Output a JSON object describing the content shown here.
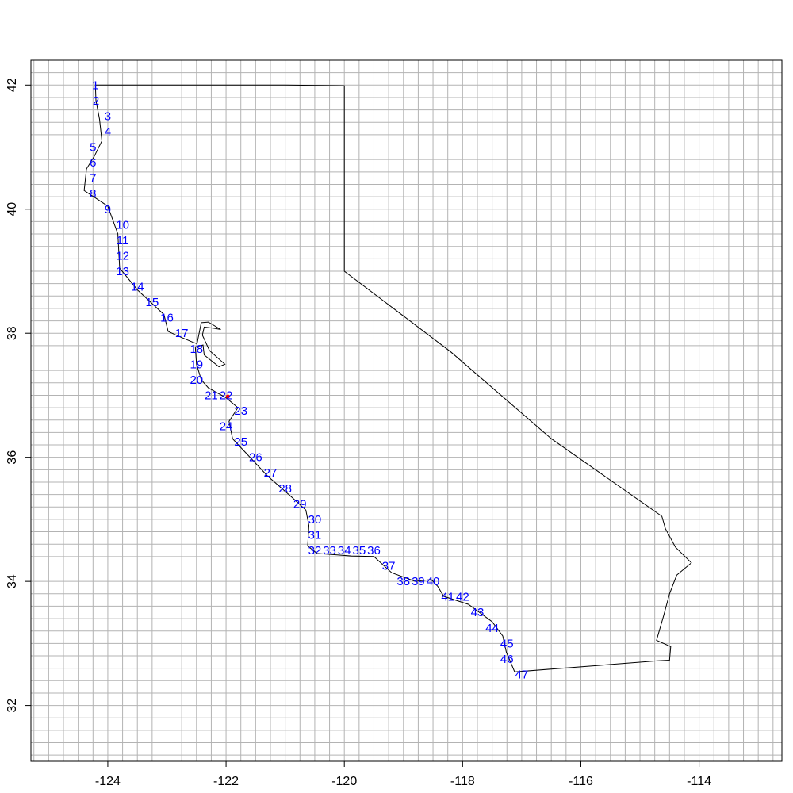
{
  "chart_data": {
    "type": "map",
    "xlim": [
      -125.3,
      -112.6
    ],
    "ylim": [
      31.1,
      42.4
    ],
    "grid": true,
    "grid_step": {
      "x": 0.25,
      "y": 0.2
    },
    "x_ticks": [
      {
        "value": -124,
        "label": "-124"
      },
      {
        "value": -122,
        "label": "-122"
      },
      {
        "value": -120,
        "label": "-120"
      },
      {
        "value": -118,
        "label": "-118"
      },
      {
        "value": -116,
        "label": "-116"
      },
      {
        "value": -114,
        "label": "-114"
      }
    ],
    "y_ticks": [
      {
        "value": 32,
        "label": "32"
      },
      {
        "value": 34,
        "label": "34"
      },
      {
        "value": 36,
        "label": "36"
      },
      {
        "value": 38,
        "label": "38"
      },
      {
        "value": 40,
        "label": "40"
      },
      {
        "value": 42,
        "label": "42"
      }
    ],
    "colors": {
      "grid": "#b3b3b3",
      "outline": "#000000",
      "labels": "#0000ff",
      "marker": "#ff0000"
    },
    "outline": [
      [
        -124.21,
        42.0
      ],
      [
        -122.0,
        42.0
      ],
      [
        -121.0,
        42.0
      ],
      [
        -120.0,
        41.99
      ],
      [
        -120.0,
        39.0
      ],
      [
        -118.2,
        37.7
      ],
      [
        -116.5,
        36.3
      ],
      [
        -114.63,
        35.05
      ],
      [
        -114.57,
        34.85
      ],
      [
        -114.4,
        34.55
      ],
      [
        -114.13,
        34.3
      ],
      [
        -114.38,
        34.1
      ],
      [
        -114.5,
        33.8
      ],
      [
        -114.6,
        33.45
      ],
      [
        -114.72,
        33.05
      ],
      [
        -114.48,
        32.95
      ],
      [
        -114.5,
        32.73
      ],
      [
        -114.7,
        32.72
      ],
      [
        -117.12,
        32.54
      ],
      [
        -117.18,
        32.68
      ],
      [
        -117.26,
        32.86
      ],
      [
        -117.32,
        33.12
      ],
      [
        -117.5,
        33.35
      ],
      [
        -117.9,
        33.63
      ],
      [
        -118.32,
        33.76
      ],
      [
        -118.42,
        33.92
      ],
      [
        -118.53,
        34.03
      ],
      [
        -118.8,
        34.0
      ],
      [
        -119.2,
        34.14
      ],
      [
        -119.5,
        34.4
      ],
      [
        -119.88,
        34.41
      ],
      [
        -120.46,
        34.45
      ],
      [
        -120.62,
        34.57
      ],
      [
        -120.6,
        34.9
      ],
      [
        -120.65,
        35.15
      ],
      [
        -120.88,
        35.35
      ],
      [
        -121.3,
        35.7
      ],
      [
        -121.89,
        36.3
      ],
      [
        -121.95,
        36.58
      ],
      [
        -121.8,
        36.8
      ],
      [
        -122.0,
        36.96
      ],
      [
        -122.3,
        37.12
      ],
      [
        -122.42,
        37.25
      ],
      [
        -122.5,
        37.5
      ],
      [
        -122.52,
        37.78
      ],
      [
        -122.39,
        37.81
      ],
      [
        -122.37,
        37.65
      ],
      [
        -122.12,
        37.46
      ],
      [
        -122.02,
        37.5
      ],
      [
        -122.28,
        37.72
      ],
      [
        -122.4,
        37.97
      ],
      [
        -122.37,
        38.1
      ],
      [
        -122.2,
        38.08
      ],
      [
        -122.09,
        38.06
      ],
      [
        -122.3,
        38.18
      ],
      [
        -122.42,
        38.17
      ],
      [
        -122.47,
        37.93
      ],
      [
        -122.49,
        37.83
      ],
      [
        -122.55,
        37.85
      ],
      [
        -122.8,
        37.95
      ],
      [
        -122.98,
        38.03
      ],
      [
        -123.05,
        38.3
      ],
      [
        -123.5,
        38.7
      ],
      [
        -123.8,
        39.05
      ],
      [
        -123.83,
        39.6
      ],
      [
        -124.0,
        40.05
      ],
      [
        -124.4,
        40.3
      ],
      [
        -124.36,
        40.65
      ],
      [
        -124.23,
        40.85
      ],
      [
        -124.1,
        41.1
      ],
      [
        -124.14,
        41.45
      ],
      [
        -124.2,
        41.75
      ],
      [
        -124.21,
        42.0
      ]
    ],
    "points": [
      {
        "label": "1",
        "lon": -124.21,
        "lat": 42.0
      },
      {
        "label": "2",
        "lon": -124.2,
        "lat": 41.75
      },
      {
        "label": "3",
        "lon": -124.0,
        "lat": 41.5
      },
      {
        "label": "4",
        "lon": -124.0,
        "lat": 41.25
      },
      {
        "label": "5",
        "lon": -124.25,
        "lat": 41.0
      },
      {
        "label": "6",
        "lon": -124.25,
        "lat": 40.75
      },
      {
        "label": "7",
        "lon": -124.25,
        "lat": 40.5
      },
      {
        "label": "8",
        "lon": -124.25,
        "lat": 40.25
      },
      {
        "label": "9",
        "lon": -124.0,
        "lat": 40.0
      },
      {
        "label": "10",
        "lon": -123.75,
        "lat": 39.75
      },
      {
        "label": "11",
        "lon": -123.75,
        "lat": 39.5
      },
      {
        "label": "12",
        "lon": -123.75,
        "lat": 39.25
      },
      {
        "label": "13",
        "lon": -123.75,
        "lat": 39.0
      },
      {
        "label": "14",
        "lon": -123.5,
        "lat": 38.75
      },
      {
        "label": "15",
        "lon": -123.25,
        "lat": 38.5
      },
      {
        "label": "16",
        "lon": -123.0,
        "lat": 38.25
      },
      {
        "label": "17",
        "lon": -122.75,
        "lat": 38.0
      },
      {
        "label": "18",
        "lon": -122.5,
        "lat": 37.75
      },
      {
        "label": "19",
        "lon": -122.5,
        "lat": 37.5
      },
      {
        "label": "20",
        "lon": -122.5,
        "lat": 37.25
      },
      {
        "label": "21",
        "lon": -122.25,
        "lat": 37.0
      },
      {
        "label": "22",
        "lon": -122.0,
        "lat": 37.0
      },
      {
        "label": "23",
        "lon": -121.75,
        "lat": 36.75
      },
      {
        "label": "24",
        "lon": -122.0,
        "lat": 36.5
      },
      {
        "label": "25",
        "lon": -121.75,
        "lat": 36.25
      },
      {
        "label": "26",
        "lon": -121.5,
        "lat": 36.0
      },
      {
        "label": "27",
        "lon": -121.25,
        "lat": 35.75
      },
      {
        "label": "28",
        "lon": -121.0,
        "lat": 35.5
      },
      {
        "label": "29",
        "lon": -120.75,
        "lat": 35.25
      },
      {
        "label": "30",
        "lon": -120.5,
        "lat": 35.0
      },
      {
        "label": "31",
        "lon": -120.5,
        "lat": 34.75
      },
      {
        "label": "32",
        "lon": -120.5,
        "lat": 34.5
      },
      {
        "label": "33",
        "lon": -120.25,
        "lat": 34.5
      },
      {
        "label": "34",
        "lon": -120.0,
        "lat": 34.5
      },
      {
        "label": "35",
        "lon": -119.75,
        "lat": 34.5
      },
      {
        "label": "36",
        "lon": -119.5,
        "lat": 34.5
      },
      {
        "label": "37",
        "lon": -119.25,
        "lat": 34.25
      },
      {
        "label": "38",
        "lon": -119.0,
        "lat": 34.0
      },
      {
        "label": "39",
        "lon": -118.75,
        "lat": 34.0
      },
      {
        "label": "40",
        "lon": -118.5,
        "lat": 34.0
      },
      {
        "label": "41",
        "lon": -118.25,
        "lat": 33.75
      },
      {
        "label": "42",
        "lon": -118.0,
        "lat": 33.75
      },
      {
        "label": "43",
        "lon": -117.75,
        "lat": 33.5
      },
      {
        "label": "44",
        "lon": -117.5,
        "lat": 33.25
      },
      {
        "label": "45",
        "lon": -117.25,
        "lat": 33.0
      },
      {
        "label": "46",
        "lon": -117.25,
        "lat": 32.75
      },
      {
        "label": "47",
        "lon": -117.0,
        "lat": 32.5
      }
    ],
    "highlight": {
      "lon": -121.97,
      "lat": 36.98
    }
  }
}
